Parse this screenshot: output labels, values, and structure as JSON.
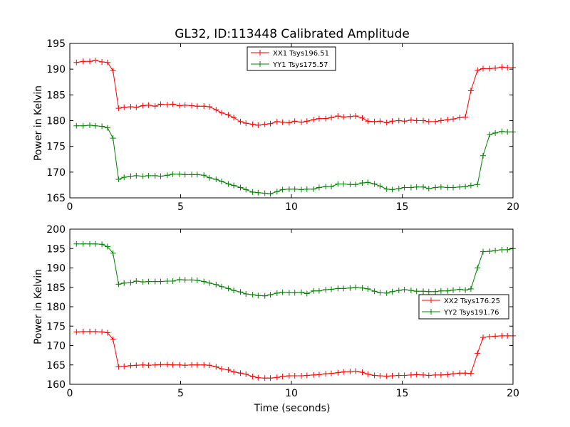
{
  "chart_data": [
    {
      "type": "line",
      "title": "GL32, ID:113448 Calibrated Amplitude",
      "xlabel": "",
      "ylabel": "Power in Kelvin",
      "xlim": [
        0,
        20
      ],
      "ylim": [
        165,
        195
      ],
      "xticks": [
        0,
        5,
        10,
        15,
        20
      ],
      "yticks": [
        165,
        170,
        175,
        180,
        185,
        190,
        195
      ],
      "grid": false,
      "legend": "top-center",
      "x": [
        0.3,
        0.6,
        0.9,
        1.15,
        1.45,
        1.7,
        1.95,
        2.2,
        2.45,
        2.75,
        3.0,
        3.3,
        3.55,
        3.85,
        4.1,
        4.4,
        4.65,
        4.95,
        5.2,
        5.5,
        5.75,
        6.05,
        6.3,
        6.6,
        6.85,
        7.15,
        7.4,
        7.7,
        7.95,
        8.25,
        8.5,
        8.8,
        9.05,
        9.35,
        9.6,
        9.9,
        10.15,
        10.45,
        10.7,
        11.0,
        11.25,
        11.55,
        11.8,
        12.1,
        12.35,
        12.65,
        12.9,
        13.2,
        13.45,
        13.75,
        14.0,
        14.3,
        14.55,
        14.85,
        15.1,
        15.4,
        15.65,
        15.95,
        16.2,
        16.5,
        16.75,
        17.05,
        17.3,
        17.6,
        17.85,
        18.1,
        18.4,
        18.65,
        18.95,
        19.2,
        19.5,
        19.75,
        20.0
      ],
      "series": [
        {
          "name": "XX1 Tsys196.51",
          "color": "#ff0000",
          "values": [
            191.3,
            191.5,
            191.5,
            191.7,
            191.4,
            191.3,
            189.7,
            182.4,
            182.6,
            182.7,
            182.6,
            182.9,
            183.0,
            182.8,
            183.2,
            183.1,
            183.2,
            182.9,
            183.0,
            182.9,
            182.8,
            182.8,
            182.7,
            182.1,
            181.5,
            181.1,
            180.6,
            179.8,
            179.5,
            179.3,
            179.1,
            179.3,
            179.4,
            179.8,
            179.7,
            179.6,
            179.9,
            179.7,
            179.9,
            180.2,
            180.4,
            180.4,
            180.6,
            180.9,
            180.7,
            180.8,
            180.9,
            180.5,
            179.9,
            179.8,
            179.9,
            179.6,
            179.9,
            180.0,
            179.9,
            180.1,
            180.0,
            180.0,
            179.8,
            179.8,
            180.0,
            180.2,
            180.3,
            180.6,
            180.7,
            185.8,
            189.8,
            190.1,
            190.1,
            190.2,
            190.4,
            190.3,
            190.3
          ]
        },
        {
          "name": "YY1 Tsys175.57",
          "color": "#008000",
          "values": [
            179.0,
            179.0,
            179.1,
            179.0,
            178.9,
            178.6,
            176.6,
            168.6,
            169.0,
            169.2,
            169.3,
            169.2,
            169.3,
            169.3,
            169.2,
            169.4,
            169.6,
            169.6,
            169.5,
            169.5,
            169.5,
            169.4,
            168.9,
            168.6,
            168.2,
            167.7,
            167.4,
            167.0,
            166.6,
            166.1,
            166.0,
            165.9,
            165.8,
            166.2,
            166.6,
            166.7,
            166.7,
            166.6,
            166.7,
            166.7,
            167.0,
            167.2,
            167.2,
            167.7,
            167.7,
            167.6,
            167.6,
            167.9,
            168.0,
            167.7,
            167.3,
            166.7,
            166.6,
            166.8,
            167.0,
            167.0,
            167.1,
            167.1,
            166.8,
            167.0,
            167.1,
            167.0,
            167.0,
            167.1,
            167.2,
            167.4,
            167.6,
            173.2,
            177.3,
            177.6,
            177.9,
            177.8,
            177.8
          ]
        }
      ]
    },
    {
      "type": "line",
      "title": "",
      "xlabel": "Time (seconds)",
      "ylabel": "Power in Kelvin",
      "xlim": [
        0,
        20
      ],
      "ylim": [
        160,
        200
      ],
      "xticks": [
        0,
        5,
        10,
        15,
        20
      ],
      "yticks": [
        160,
        165,
        170,
        175,
        180,
        185,
        190,
        195,
        200
      ],
      "grid": false,
      "legend": "right",
      "x": [
        0.3,
        0.6,
        0.9,
        1.15,
        1.45,
        1.7,
        1.95,
        2.2,
        2.45,
        2.75,
        3.0,
        3.3,
        3.55,
        3.85,
        4.1,
        4.4,
        4.65,
        4.95,
        5.2,
        5.5,
        5.75,
        6.05,
        6.3,
        6.6,
        6.85,
        7.15,
        7.4,
        7.7,
        7.95,
        8.25,
        8.5,
        8.8,
        9.05,
        9.35,
        9.6,
        9.9,
        10.15,
        10.45,
        10.7,
        11.0,
        11.25,
        11.55,
        11.8,
        12.1,
        12.35,
        12.65,
        12.9,
        13.2,
        13.45,
        13.75,
        14.0,
        14.3,
        14.55,
        14.85,
        15.1,
        15.4,
        15.65,
        15.95,
        16.2,
        16.5,
        16.75,
        17.05,
        17.3,
        17.6,
        17.85,
        18.1,
        18.4,
        18.65,
        18.95,
        19.2,
        19.5,
        19.75,
        20.0
      ],
      "series": [
        {
          "name": "XX2 Tsys176.25",
          "color": "#ff0000",
          "values": [
            173.5,
            173.6,
            173.6,
            173.6,
            173.5,
            173.3,
            171.6,
            164.5,
            164.6,
            164.8,
            164.9,
            165.0,
            164.9,
            165.0,
            165.1,
            165.1,
            165.0,
            165.0,
            164.9,
            165.0,
            165.0,
            165.0,
            164.9,
            164.5,
            164.0,
            163.7,
            163.2,
            162.9,
            162.6,
            162.0,
            161.7,
            161.6,
            161.6,
            161.8,
            162.0,
            162.2,
            162.2,
            162.2,
            162.3,
            162.4,
            162.5,
            162.7,
            162.8,
            163.0,
            163.2,
            163.3,
            163.4,
            163.1,
            162.6,
            162.3,
            162.2,
            162.1,
            162.2,
            162.3,
            162.3,
            162.4,
            162.5,
            162.4,
            162.3,
            162.4,
            162.4,
            162.5,
            162.7,
            162.9,
            162.9,
            162.8,
            168.0,
            172.1,
            172.3,
            172.4,
            172.5,
            172.5,
            172.5
          ]
        },
        {
          "name": "YY2 Tsys191.76",
          "color": "#008000",
          "values": [
            196.2,
            196.2,
            196.2,
            196.2,
            196.1,
            195.5,
            193.8,
            185.8,
            186.1,
            186.2,
            186.6,
            186.4,
            186.5,
            186.5,
            186.5,
            186.6,
            186.6,
            187.0,
            186.9,
            186.9,
            186.8,
            186.5,
            186.1,
            185.7,
            185.2,
            184.7,
            184.2,
            183.8,
            183.3,
            183.1,
            182.9,
            182.8,
            183.1,
            183.5,
            183.7,
            183.6,
            183.6,
            183.7,
            183.4,
            184.1,
            184.1,
            184.4,
            184.5,
            184.7,
            184.7,
            184.8,
            185.0,
            184.8,
            184.6,
            184.0,
            183.6,
            183.5,
            183.9,
            184.2,
            184.4,
            184.2,
            184.0,
            184.0,
            183.9,
            183.9,
            184.1,
            184.1,
            184.3,
            184.5,
            184.3,
            184.6,
            190.0,
            194.2,
            194.3,
            194.5,
            194.7,
            194.7,
            195.0
          ]
        }
      ]
    }
  ]
}
